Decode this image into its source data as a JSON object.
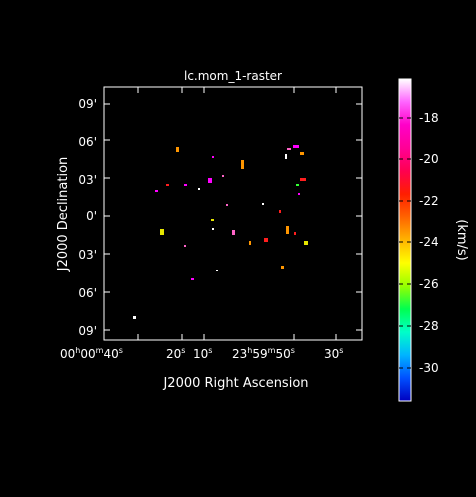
{
  "plot": {
    "title": "lc.mom_1-raster",
    "xlabel": "J2000 Right Ascension",
    "ylabel": "J2000 Declination",
    "xticks": [
      {
        "h": "00",
        "m": "00",
        "s": "40"
      },
      {
        "s": "20"
      },
      {
        "s": "10"
      },
      {
        "h": "23",
        "m": "59",
        "s": "50"
      },
      {
        "s": "30"
      }
    ],
    "yticks": [
      "09'",
      "06'",
      "03'",
      "0'",
      "03'",
      "06'",
      "09'"
    ]
  },
  "colorbar": {
    "label": "(km/s)",
    "range": [
      -31.5,
      -16.0
    ],
    "ticks": [
      "-18",
      "-20",
      "-22",
      "-24",
      "-26",
      "-28",
      "-30"
    ],
    "colormap": [
      "#0000c0",
      "#0050ff",
      "#00b4ff",
      "#00ffc8",
      "#00ff50",
      "#96ff00",
      "#ffff00",
      "#ffb400",
      "#ff6400",
      "#ff1e00",
      "#ff0050",
      "#ff0096",
      "#ff00c8",
      "#ff64ff",
      "#ffffff"
    ]
  },
  "blob_colors": {
    "magenta": "#ff00ff",
    "orange": "#ff9600",
    "red": "#ff1e1e",
    "white": "#ffffff",
    "green": "#32ff32",
    "pink": "#ff64c8",
    "yellow": "#e6e600"
  }
}
